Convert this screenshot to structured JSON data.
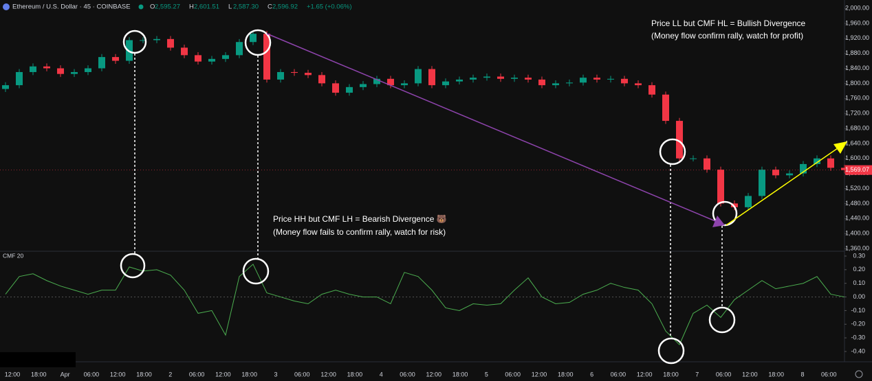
{
  "chart_data": {
    "type": "candlestick",
    "title": "Ethereum / U.S. Dollar · 45 · COINBASE",
    "ohlc_header": [
      {
        "label": "O",
        "value": "2,595.27"
      },
      {
        "label": "H",
        "value": "2,601.51"
      },
      {
        "label": "L",
        "value": "2,587.30"
      },
      {
        "label": "C",
        "value": "2,596.92"
      }
    ],
    "change": "+1.65 (+0.06%)",
    "last_price_label": "1,569.07",
    "last_price": 1569.07,
    "up_color": "#089981",
    "down_color": "#f23645",
    "x_labels": [
      "12:00",
      "18:00",
      "Apr",
      "06:00",
      "12:00",
      "18:00",
      "2",
      "06:00",
      "12:00",
      "18:00",
      "3",
      "06:00",
      "12:00",
      "18:00",
      "4",
      "06:00",
      "12:00",
      "18:00",
      "5",
      "06:00",
      "12:00",
      "18:00",
      "6",
      "06:00",
      "12:00",
      "18:00",
      "7",
      "06:00",
      "12:00",
      "18:00",
      "8",
      "06:00"
    ],
    "open": [
      1785,
      1795,
      1830,
      1845,
      1840,
      1825,
      1830,
      1840,
      1870,
      1860,
      1915,
      1915,
      1918,
      1895,
      1875,
      1858,
      1865,
      1875,
      1910,
      1932,
      1810,
      1830,
      1828,
      1822,
      1800,
      1775,
      1790,
      1798,
      1812,
      1795,
      1800,
      1838,
      1795,
      1805,
      1810,
      1815,
      1818,
      1812,
      1815,
      1810,
      1795,
      1800,
      1802,
      1815,
      1810,
      1812,
      1800,
      1795,
      1770,
      1700,
      1600,
      1600,
      1570,
      1480,
      1470,
      1500,
      1570,
      1555,
      1560,
      1585,
      1600,
      1575
    ],
    "high": [
      1803,
      1838,
      1853,
      1853,
      1848,
      1838,
      1848,
      1878,
      1878,
      1923,
      1923,
      1926,
      1926,
      1903,
      1883,
      1873,
      1883,
      1918,
      1940,
      1940,
      1838,
      1838,
      1836,
      1830,
      1808,
      1798,
      1806,
      1820,
      1820,
      1808,
      1846,
      1846,
      1813,
      1818,
      1823,
      1826,
      1826,
      1823,
      1823,
      1818,
      1808,
      1810,
      1823,
      1823,
      1820,
      1820,
      1808,
      1803,
      1778,
      1708,
      1608,
      1608,
      1578,
      1488,
      1508,
      1578,
      1578,
      1568,
      1593,
      1608,
      1608,
      1583
    ],
    "low": [
      1777,
      1787,
      1822,
      1832,
      1817,
      1817,
      1822,
      1832,
      1852,
      1852,
      1907,
      1907,
      1887,
      1867,
      1850,
      1850,
      1857,
      1867,
      1902,
      1802,
      1802,
      1820,
      1814,
      1792,
      1767,
      1767,
      1782,
      1790,
      1787,
      1787,
      1792,
      1787,
      1787,
      1797,
      1802,
      1807,
      1804,
      1804,
      1802,
      1787,
      1787,
      1792,
      1794,
      1802,
      1802,
      1792,
      1787,
      1762,
      1692,
      1592,
      1592,
      1562,
      1472,
      1462,
      1462,
      1492,
      1547,
      1547,
      1552,
      1577,
      1567,
      1561
    ],
    "close": [
      1795,
      1830,
      1845,
      1840,
      1825,
      1830,
      1840,
      1870,
      1860,
      1915,
      1915,
      1918,
      1895,
      1875,
      1858,
      1865,
      1875,
      1910,
      1932,
      1810,
      1830,
      1828,
      1822,
      1800,
      1775,
      1790,
      1798,
      1812,
      1795,
      1800,
      1838,
      1795,
      1805,
      1810,
      1815,
      1818,
      1812,
      1815,
      1810,
      1795,
      1800,
      1802,
      1815,
      1810,
      1812,
      1800,
      1795,
      1770,
      1700,
      1600,
      1600,
      1570,
      1480,
      1470,
      1500,
      1570,
      1555,
      1560,
      1585,
      1600,
      1575,
      1569
    ],
    "ylim": [
      1360,
      2000
    ],
    "yticks": [
      {
        "value": 2000,
        "label": "2,000.00"
      },
      {
        "value": 1960,
        "label": "1,960.00"
      },
      {
        "value": 1920,
        "label": "1,920.00"
      },
      {
        "value": 1880,
        "label": "1,880.00"
      },
      {
        "value": 1840,
        "label": "1,840.00"
      },
      {
        "value": 1800,
        "label": "1,800.00"
      },
      {
        "value": 1760,
        "label": "1,760.00"
      },
      {
        "value": 1720,
        "label": "1,720.00"
      },
      {
        "value": 1680,
        "label": "1,680.00"
      },
      {
        "value": 1640,
        "label": "1,640.00"
      },
      {
        "value": 1600,
        "label": "1,600.00"
      },
      {
        "value": 1560,
        "label": "1,560.00"
      },
      {
        "value": 1520,
        "label": "1,520.00"
      },
      {
        "value": 1480,
        "label": "1,480.00"
      },
      {
        "value": 1440,
        "label": "1,440.00"
      },
      {
        "value": 1400,
        "label": "1,400.00"
      },
      {
        "value": 1360,
        "label": "1,360.00"
      }
    ],
    "indicator": {
      "name": "CMF 20",
      "color": "#4caf50",
      "values": [
        0.02,
        0.15,
        0.17,
        0.12,
        0.08,
        0.05,
        0.02,
        0.05,
        0.05,
        0.22,
        0.19,
        0.2,
        0.16,
        0.05,
        -0.12,
        -0.1,
        -0.28,
        0.15,
        0.24,
        0.03,
        0.0,
        -0.03,
        -0.05,
        0.02,
        0.05,
        0.02,
        0.0,
        0.0,
        -0.05,
        0.18,
        0.15,
        0.05,
        -0.08,
        -0.1,
        -0.05,
        -0.06,
        -0.05,
        0.05,
        0.14,
        0.0,
        -0.05,
        -0.04,
        0.02,
        0.05,
        0.1,
        0.07,
        0.05,
        -0.05,
        -0.25,
        -0.35,
        -0.12,
        -0.06,
        -0.15,
        -0.02,
        0.05,
        0.12,
        0.06,
        0.08,
        0.1,
        0.15,
        0.02,
        0.0
      ],
      "ylim": [
        -0.4,
        0.3
      ],
      "yticks": [
        {
          "value": 0.3,
          "label": "0.30"
        },
        {
          "value": 0.2,
          "label": "0.20"
        },
        {
          "value": 0.1,
          "label": "0.10"
        },
        {
          "value": 0,
          "label": "0.00"
        },
        {
          "value": -0.1,
          "label": "-0.10"
        },
        {
          "value": -0.2,
          "label": "-0.20"
        },
        {
          "value": -0.3,
          "label": "-0.30"
        },
        {
          "value": -0.4,
          "label": "-0.40"
        }
      ]
    },
    "annotations": [
      {
        "lines": [
          "Price HH but CMF LH = Bearish Divergence 🐻",
          "(Money flow fails to confirm rally, watch for risk)"
        ]
      },
      {
        "lines": [
          "Price LL but CMF HL = Bullish Divergence",
          "(Money flow confirm rally, watch for profit)"
        ]
      }
    ]
  }
}
